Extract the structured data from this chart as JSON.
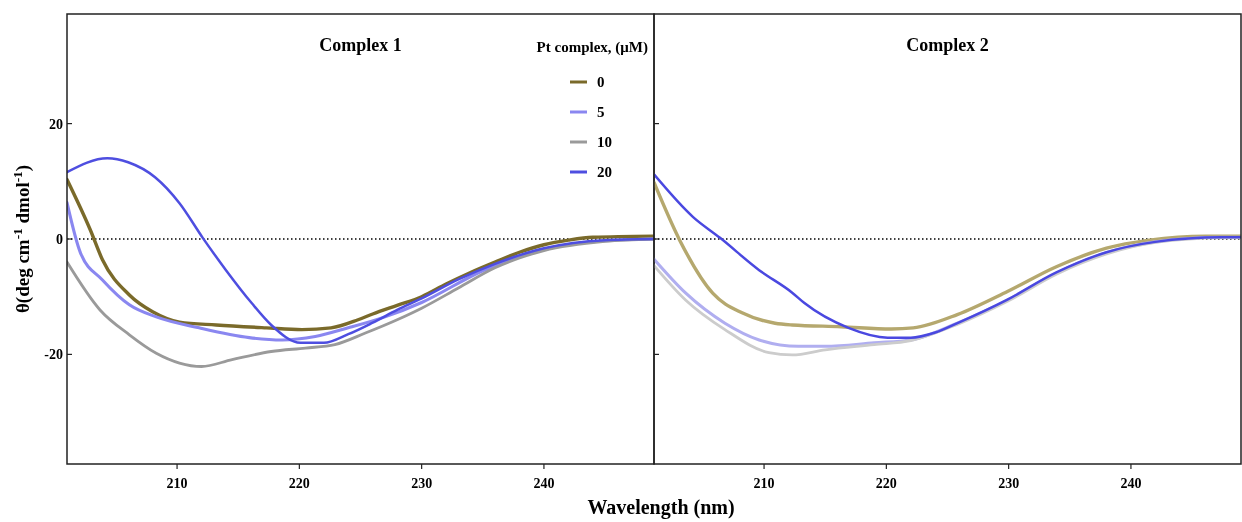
{
  "chart_data": [
    {
      "type": "line",
      "title": "Complex 1",
      "xlabel": "Wavelength (nm)",
      "ylabel": "θ(deg cm$^{-1}$ dmol$^{-1}$)",
      "legend_title": "Pt complex, (μM)",
      "legend": "top right",
      "xlim": [
        201,
        249
      ],
      "ylim": [
        -39,
        39
      ],
      "xticks": [
        210,
        220,
        230,
        240
      ],
      "yticks": [
        -20,
        0,
        20
      ],
      "ref_lines": [
        {
          "axis": "y",
          "value": 0,
          "color": "#000000",
          "line_style": "dotted"
        }
      ],
      "series": [
        {
          "name": "0",
          "color": "#7a6a2a",
          "x": [
            201,
            202.9,
            203.9,
            206.1,
            208,
            210.2,
            213.2,
            217.3,
            220.2,
            222.6,
            224.8,
            226,
            228,
            230,
            232,
            234,
            236,
            238,
            240,
            242,
            244,
            249
          ],
          "values": [
            10.3,
            1.6,
            -3.6,
            -9.7,
            -12.6,
            -14.4,
            -14.9,
            -15.4,
            -15.7,
            -15.4,
            -14,
            -13,
            -11.5,
            -10,
            -7.8,
            -5.8,
            -4,
            -2.3,
            -1,
            -0.2,
            0.3,
            0.5
          ]
        },
        {
          "name": "5",
          "color": "#8a87f0",
          "x": [
            201,
            202.1,
            203.9,
            206.1,
            208.3,
            211.8,
            215.9,
            218.6,
            221.3,
            224,
            227,
            230,
            235,
            240,
            245,
            249
          ],
          "values": [
            6.3,
            -2.4,
            -7.1,
            -11.4,
            -13.5,
            -15.4,
            -17.1,
            -17.5,
            -16.9,
            -15.4,
            -13.5,
            -11,
            -5.5,
            -1.8,
            -0.3,
            0
          ]
        },
        {
          "name": "10",
          "color": "#9a9a9a",
          "x": [
            201,
            203.7,
            206.1,
            208.3,
            210.2,
            212,
            214.5,
            217.7,
            220.5,
            222.9,
            225.4,
            228,
            230,
            233,
            236,
            238,
            240,
            245,
            249
          ],
          "values": [
            -4,
            -12.3,
            -16.6,
            -19.8,
            -21.5,
            -22.1,
            -20.9,
            -19.5,
            -18.9,
            -18.3,
            -16.3,
            -14,
            -12,
            -8.5,
            -5,
            -3.3,
            -2,
            -0.4,
            0
          ]
        },
        {
          "name": "20",
          "color": "#4e4ee0",
          "x": [
            201,
            204.3,
            206,
            208.2,
            210.2,
            212.1,
            214,
            216.1,
            217.7,
            220.1,
            222,
            224,
            226,
            228,
            230,
            233,
            236,
            240,
            245,
            249
          ],
          "values": [
            11.6,
            14,
            13.3,
            10.7,
            6.2,
            0.2,
            -5.4,
            -11.1,
            -14.9,
            -18,
            -18,
            -16.5,
            -14.5,
            -12.3,
            -10.3,
            -7,
            -4.3,
            -1.6,
            -0.2,
            0
          ]
        }
      ]
    },
    {
      "type": "line",
      "title": "Complex 2",
      "tick_labels": "x",
      "xlim": [
        201,
        249
      ],
      "ylim": [
        -39,
        39
      ],
      "xticks": [
        210,
        220,
        230,
        240
      ],
      "yticks": [
        -20,
        0,
        20
      ],
      "ref_lines": [
        {
          "axis": "y",
          "value": 0,
          "color": "#000000",
          "line_style": "dotted"
        }
      ],
      "series": [
        {
          "color": "#b5a86e",
          "x": [
            201,
            203.1,
            205.8,
            208.2,
            210.9,
            212.3,
            216.3,
            220.4,
            222.2,
            225.8,
            229.9,
            233.9,
            238,
            241.5,
            246.1,
            249
          ],
          "values": [
            9.8,
            -0.2,
            -9.4,
            -12.8,
            -14.6,
            -14.9,
            -15.2,
            -15.6,
            -15.4,
            -13.1,
            -9.1,
            -4.8,
            -1.6,
            -0.2,
            0.5,
            0.5
          ]
        },
        {
          "color": "#b0aef0",
          "x": [
            201,
            203.6,
            206.8,
            209.6,
            212.8,
            215,
            219,
            222,
            225.8,
            229.9,
            233.9,
            238,
            242,
            247.4,
            249
          ],
          "values": [
            -3.5,
            -9.4,
            -14.6,
            -17.5,
            -18.6,
            -18.6,
            -18,
            -17.5,
            -14.6,
            -10.6,
            -5.9,
            -2.4,
            -0.5,
            0.3,
            0.3
          ]
        },
        {
          "color": "#cccccc",
          "x": [
            201,
            203.6,
            206.8,
            210.4,
            212.3,
            215,
            219,
            222,
            225.8,
            229.9,
            233.9,
            238,
            242,
            247.4,
            249
          ],
          "values": [
            -4.6,
            -10.6,
            -15.7,
            -19.7,
            -20.1,
            -19.2,
            -18.3,
            -17.6,
            -14.8,
            -10.8,
            -6.1,
            -2.6,
            -0.6,
            0.2,
            0.2
          ]
        },
        {
          "color": "#4a48e0",
          "x": [
            201,
            204.2,
            206.4,
            209.6,
            212.3,
            213.3,
            216.9,
            220.1,
            222,
            224,
            226,
            229.9,
            233.9,
            238,
            242,
            247.4,
            249
          ],
          "values": [
            11.2,
            3.8,
            0.2,
            -5.4,
            -9.3,
            -11.1,
            -15.4,
            -17.1,
            -17.1,
            -16.2,
            -14.4,
            -10.5,
            -5.8,
            -2.3,
            -0.5,
            0.3,
            0.3
          ]
        }
      ]
    }
  ]
}
